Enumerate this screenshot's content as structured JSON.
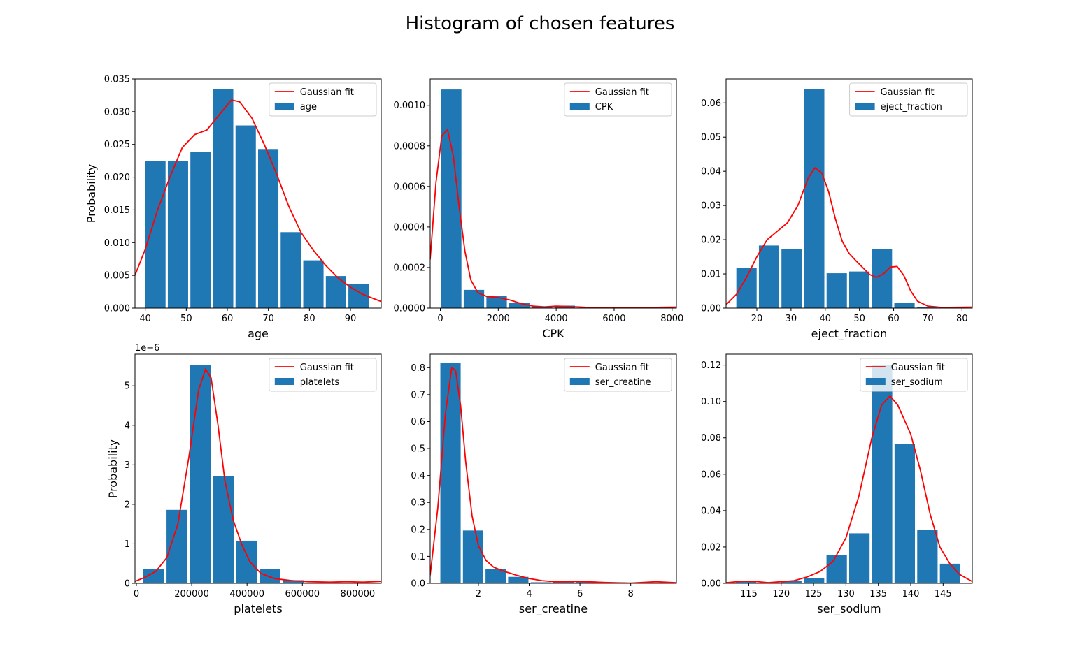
{
  "suptitle": "Histogram of chosen features",
  "colors": {
    "bar": "#1f77b4",
    "fit": "#ff0000",
    "frame": "#000000"
  },
  "chart_data": [
    {
      "type": "bar",
      "xlabel": "age",
      "ylabel": "Probability",
      "xlim": [
        37.5,
        97.5
      ],
      "ylim": [
        0,
        0.035
      ],
      "xticks": [
        40,
        50,
        60,
        70,
        80,
        90
      ],
      "yticks": [
        0,
        0.005,
        0.01,
        0.015,
        0.02,
        0.025,
        0.03,
        0.035
      ],
      "ytick_labels": [
        "0.000",
        "0.005",
        "0.010",
        "0.015",
        "0.020",
        "0.025",
        "0.030",
        "0.035"
      ],
      "offset_text": "",
      "legend": {
        "position": "upper right",
        "line": "Gaussian fit",
        "bar": "age"
      },
      "bins": {
        "start": 40,
        "width": 5.5
      },
      "values": [
        0.0225,
        0.0225,
        0.0238,
        0.0335,
        0.0279,
        0.0243,
        0.0116,
        0.0073,
        0.0049,
        0.0037
      ],
      "fit": [
        [
          37.5,
          0.005
        ],
        [
          40,
          0.009
        ],
        [
          43,
          0.015
        ],
        [
          46,
          0.02
        ],
        [
          49,
          0.0245
        ],
        [
          52,
          0.0265
        ],
        [
          55,
          0.0272
        ],
        [
          58,
          0.0295
        ],
        [
          61,
          0.0318
        ],
        [
          63,
          0.0315
        ],
        [
          66,
          0.029
        ],
        [
          69,
          0.025
        ],
        [
          72,
          0.0205
        ],
        [
          75,
          0.0155
        ],
        [
          78,
          0.0115
        ],
        [
          81,
          0.0088
        ],
        [
          84,
          0.0065
        ],
        [
          87,
          0.0046
        ],
        [
          90,
          0.0032
        ],
        [
          93,
          0.0021
        ],
        [
          97.5,
          0.001
        ]
      ]
    },
    {
      "type": "bar",
      "xlabel": "CPK",
      "ylabel": "",
      "xlim": [
        -350,
        8150
      ],
      "ylim": [
        0,
        0.00113
      ],
      "xticks": [
        0,
        2000,
        4000,
        6000,
        8000
      ],
      "yticks": [
        0,
        0.0002,
        0.0004,
        0.0006,
        0.0008,
        0.001
      ],
      "ytick_labels": [
        "0.0000",
        "0.0002",
        "0.0004",
        "0.0006",
        "0.0008",
        "0.0010"
      ],
      "offset_text": "",
      "legend": {
        "position": "upper right",
        "line": "Gaussian fit",
        "bar": "CPK"
      },
      "bins": {
        "start": 23,
        "width": 784
      },
      "values": [
        0.001078,
        9e-05,
        6e-05,
        2.5e-05,
        4e-06,
        1.2e-05,
        2e-06,
        2e-06,
        1.5e-06,
        3e-06
      ],
      "fit": [
        [
          -350,
          0.00024
        ],
        [
          -150,
          0.00062
        ],
        [
          50,
          0.00085
        ],
        [
          250,
          0.00088
        ],
        [
          450,
          0.00075
        ],
        [
          650,
          0.0005
        ],
        [
          850,
          0.00028
        ],
        [
          1050,
          0.00014
        ],
        [
          1300,
          7.5e-05
        ],
        [
          1600,
          5.8e-05
        ],
        [
          2000,
          5.2e-05
        ],
        [
          2400,
          4e-05
        ],
        [
          2800,
          2.2e-05
        ],
        [
          3200,
          1e-05
        ],
        [
          3600,
          6e-06
        ],
        [
          4000,
          1e-05
        ],
        [
          4400,
          8e-06
        ],
        [
          5000,
          4e-06
        ],
        [
          6000,
          3e-06
        ],
        [
          7000,
          5e-07
        ],
        [
          7600,
          4e-06
        ],
        [
          8150,
          5e-06
        ]
      ]
    },
    {
      "type": "bar",
      "xlabel": "eject_fraction",
      "ylabel": "",
      "xlim": [
        11,
        83
      ],
      "ylim": [
        0,
        0.067
      ],
      "xticks": [
        20,
        30,
        40,
        50,
        60,
        70,
        80
      ],
      "yticks": [
        0,
        0.01,
        0.02,
        0.03,
        0.04,
        0.05,
        0.06
      ],
      "ytick_labels": [
        "0.00",
        "0.01",
        "0.02",
        "0.03",
        "0.04",
        "0.05",
        "0.06"
      ],
      "offset_text": "",
      "legend": {
        "position": "upper right",
        "line": "Gaussian fit",
        "bar": "eject_fraction"
      },
      "bins": {
        "start": 14,
        "width": 6.6
      },
      "values": [
        0.0117,
        0.0183,
        0.0172,
        0.064,
        0.0102,
        0.0107,
        0.0172,
        0.0015,
        0.0004,
        0.0001
      ],
      "fit": [
        [
          11,
          0.001
        ],
        [
          14,
          0.004
        ],
        [
          17,
          0.009
        ],
        [
          20,
          0.015
        ],
        [
          23,
          0.02
        ],
        [
          26,
          0.0225
        ],
        [
          29,
          0.025
        ],
        [
          32,
          0.03
        ],
        [
          35,
          0.038
        ],
        [
          37,
          0.041
        ],
        [
          39,
          0.0395
        ],
        [
          41,
          0.034
        ],
        [
          43,
          0.026
        ],
        [
          45,
          0.0195
        ],
        [
          47,
          0.016
        ],
        [
          49,
          0.0138
        ],
        [
          51,
          0.0118
        ],
        [
          53,
          0.0098
        ],
        [
          55,
          0.009
        ],
        [
          57,
          0.01
        ],
        [
          59,
          0.012
        ],
        [
          61,
          0.0122
        ],
        [
          63,
          0.0095
        ],
        [
          65,
          0.005
        ],
        [
          67,
          0.002
        ],
        [
          70,
          0.0006
        ],
        [
          74,
          0.0002
        ],
        [
          83,
          0.0003
        ]
      ]
    },
    {
      "type": "bar",
      "xlabel": "platelets",
      "ylabel": "Probability",
      "xlim": [
        -5000,
        885000
      ],
      "ylim": [
        0,
        5.8e-06
      ],
      "xticks": [
        0,
        200000,
        400000,
        600000,
        800000
      ],
      "yticks": [
        0,
        1e-06,
        2e-06,
        3e-06,
        4e-06,
        5e-06
      ],
      "ytick_labels": [
        "0",
        "1",
        "2",
        "3",
        "4",
        "5"
      ],
      "offset_text": "1e−6",
      "legend": {
        "position": "upper right",
        "line": "Gaussian fit",
        "bar": "platelets"
      },
      "bins": {
        "start": 25000,
        "width": 84000
      },
      "values": [
        3.6e-07,
        1.86e-06,
        5.52e-06,
        2.71e-06,
        1.08e-06,
        3.6e-07,
        8e-08,
        1e-08,
        1e-08,
        1e-08
      ],
      "fit": [
        [
          -5000,
          5e-08
        ],
        [
          30000,
          1.5e-07
        ],
        [
          70000,
          3e-07
        ],
        [
          110000,
          6.5e-07
        ],
        [
          150000,
          1.5e-06
        ],
        [
          190000,
          3.2e-06
        ],
        [
          225000,
          4.9e-06
        ],
        [
          250000,
          5.42e-06
        ],
        [
          270000,
          5.2e-06
        ],
        [
          295000,
          4e-06
        ],
        [
          320000,
          2.6e-06
        ],
        [
          350000,
          1.6e-06
        ],
        [
          380000,
          1e-06
        ],
        [
          410000,
          5.5e-07
        ],
        [
          450000,
          2.5e-07
        ],
        [
          500000,
          1.2e-07
        ],
        [
          560000,
          7e-08
        ],
        [
          620000,
          4e-08
        ],
        [
          700000,
          3e-08
        ],
        [
          760000,
          4e-08
        ],
        [
          820000,
          3e-08
        ],
        [
          885000,
          5e-08
        ]
      ]
    },
    {
      "type": "bar",
      "xlabel": "ser_creatine",
      "ylabel": "",
      "xlim": [
        0.1,
        9.8
      ],
      "ylim": [
        0,
        0.85
      ],
      "xticks": [
        2,
        4,
        6,
        8
      ],
      "yticks": [
        0,
        0.1,
        0.2,
        0.3,
        0.4,
        0.5,
        0.6,
        0.7,
        0.8
      ],
      "ytick_labels": [
        "0.0",
        "0.1",
        "0.2",
        "0.3",
        "0.4",
        "0.5",
        "0.6",
        "0.7",
        "0.8"
      ],
      "offset_text": "",
      "legend": {
        "position": "upper right",
        "line": "Gaussian fit",
        "bar": "ser_creatine"
      },
      "bins": {
        "start": 0.5,
        "width": 0.89
      },
      "values": [
        0.818,
        0.196,
        0.052,
        0.024,
        0.004,
        0.006,
        0.007,
        0.002,
        0.001,
        0.003
      ],
      "fit": [
        [
          0.1,
          0.03
        ],
        [
          0.4,
          0.28
        ],
        [
          0.7,
          0.63
        ],
        [
          0.95,
          0.8
        ],
        [
          1.1,
          0.79
        ],
        [
          1.3,
          0.66
        ],
        [
          1.5,
          0.45
        ],
        [
          1.75,
          0.25
        ],
        [
          2.0,
          0.14
        ],
        [
          2.3,
          0.085
        ],
        [
          2.6,
          0.06
        ],
        [
          3.0,
          0.045
        ],
        [
          3.5,
          0.03
        ],
        [
          4.0,
          0.018
        ],
        [
          4.5,
          0.01
        ],
        [
          5.0,
          0.006
        ],
        [
          6.0,
          0.007
        ],
        [
          7.0,
          0.003
        ],
        [
          8.0,
          0.001
        ],
        [
          9.0,
          0.006
        ],
        [
          9.8,
          0.002
        ]
      ]
    },
    {
      "type": "bar",
      "xlabel": "ser_sodium",
      "ylabel": "",
      "xlim": [
        111.5,
        149.5
      ],
      "ylim": [
        0,
        0.126
      ],
      "xticks": [
        115,
        120,
        125,
        130,
        135,
        140,
        145
      ],
      "yticks": [
        0,
        0.02,
        0.04,
        0.06,
        0.08,
        0.1,
        0.12
      ],
      "ytick_labels": [
        "0.00",
        "0.02",
        "0.04",
        "0.06",
        "0.08",
        "0.10",
        "0.12"
      ],
      "offset_text": "",
      "legend": {
        "position": "upper right",
        "line": "Gaussian fit",
        "bar": "ser_sodium"
      },
      "bins": {
        "start": 113,
        "width": 3.5
      },
      "values": [
        0.0015,
        0.0002,
        0.0012,
        0.003,
        0.0155,
        0.0275,
        0.12,
        0.0765,
        0.0295,
        0.0108
      ],
      "fit": [
        [
          111.5,
          0.0003
        ],
        [
          114,
          0.0012
        ],
        [
          116,
          0.001
        ],
        [
          118,
          0.0004
        ],
        [
          120,
          0.0009
        ],
        [
          122,
          0.0015
        ],
        [
          124,
          0.0035
        ],
        [
          126,
          0.0065
        ],
        [
          128,
          0.012
        ],
        [
          130,
          0.025
        ],
        [
          132,
          0.048
        ],
        [
          134,
          0.08
        ],
        [
          135.5,
          0.098
        ],
        [
          136.8,
          0.103
        ],
        [
          138,
          0.098
        ],
        [
          140,
          0.082
        ],
        [
          141.5,
          0.062
        ],
        [
          143,
          0.038
        ],
        [
          144.5,
          0.02
        ],
        [
          146,
          0.011
        ],
        [
          147.5,
          0.005
        ],
        [
          149.5,
          0.001
        ]
      ]
    }
  ]
}
